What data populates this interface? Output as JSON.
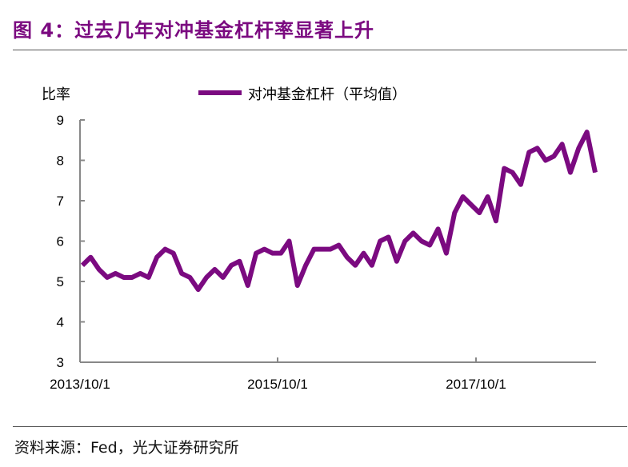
{
  "title": "图 4：过去几年对冲基金杠杆率显著上升",
  "source": "资料来源：Fed，光大证券研究所",
  "chart_data": {
    "type": "line",
    "title": "",
    "ylabel": "比率",
    "xlabel": "",
    "ylim": [
      3,
      9
    ],
    "yticks": [
      "3",
      "4",
      "5",
      "6",
      "7",
      "8",
      "9"
    ],
    "xtick_labels": [
      "2013/10/1",
      "2015/10/1",
      "2017/10/1"
    ],
    "legend": "top",
    "grid": false,
    "color": "#7b0a80",
    "x_start": "2013/10",
    "x_frequency": "monthly",
    "series": [
      {
        "name": "对冲基金杠杆（平均值）",
        "values": [
          5.4,
          5.6,
          5.3,
          5.1,
          5.2,
          5.1,
          5.1,
          5.2,
          5.1,
          5.6,
          5.8,
          5.7,
          5.2,
          5.1,
          4.8,
          5.1,
          5.3,
          5.1,
          5.4,
          5.5,
          4.9,
          5.7,
          5.8,
          5.7,
          5.7,
          6.0,
          4.9,
          5.4,
          5.8,
          5.8,
          5.8,
          5.9,
          5.6,
          5.4,
          5.7,
          5.4,
          6.0,
          6.1,
          5.5,
          6.0,
          6.2,
          6.0,
          5.9,
          6.3,
          5.7,
          6.7,
          7.1,
          6.9,
          6.7,
          7.1,
          6.5,
          7.8,
          7.7,
          7.4,
          8.2,
          8.3,
          8.0,
          8.1,
          8.4,
          7.7,
          8.3,
          8.7,
          7.7
        ]
      }
    ]
  }
}
